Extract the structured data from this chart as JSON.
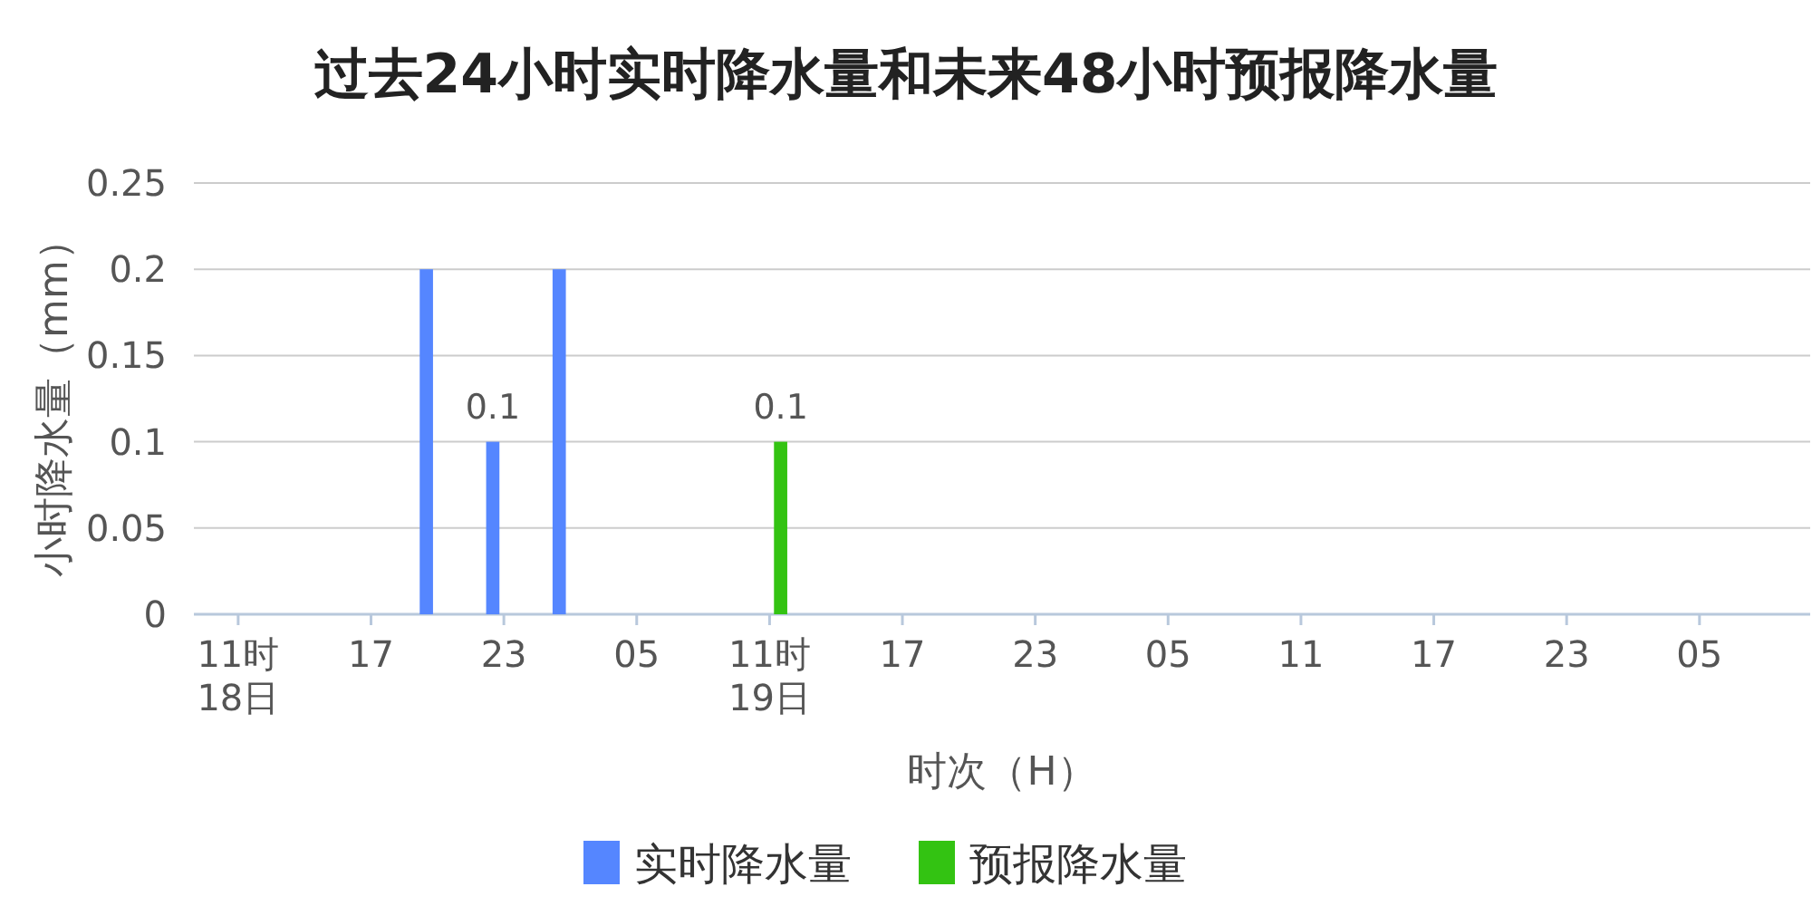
{
  "chart_data": {
    "type": "bar",
    "title": "过去24小时实时降水量和未来48小时预报降水量",
    "xlabel": "时次（H）",
    "ylabel": "小时降水量（mm）",
    "categories": [
      null,
      null,
      "11时\n18日",
      null,
      null,
      null,
      null,
      null,
      "17",
      null,
      null,
      null,
      null,
      null,
      "23",
      null,
      null,
      null,
      null,
      null,
      "05",
      null,
      null,
      null,
      null,
      null,
      "11时\n19日",
      null,
      null,
      null,
      null,
      null,
      "17",
      null,
      null,
      null,
      null,
      null,
      "23",
      null,
      null,
      null,
      null,
      null,
      "05",
      null,
      null,
      null,
      null,
      null,
      "11",
      null,
      null,
      null,
      null,
      null,
      "17",
      null,
      null,
      null,
      null,
      null,
      "23",
      null,
      null,
      null,
      null,
      null,
      "05",
      null,
      null,
      null,
      null
    ],
    "series": [
      {
        "name": "实时降水量",
        "color": "#5586ff",
        "values": [
          0,
          0,
          0,
          0,
          0,
          0,
          0,
          0,
          0,
          0,
          0.2,
          0,
          0,
          0.1,
          0,
          0,
          0.2,
          0,
          0,
          0,
          0,
          0,
          0,
          0,
          null,
          null,
          null,
          null,
          null,
          null,
          null,
          null,
          null,
          null,
          null,
          null,
          null,
          null,
          null,
          null,
          null,
          null,
          null,
          null,
          null,
          null,
          null,
          null,
          null,
          null,
          null,
          null,
          null,
          null,
          null,
          null,
          null,
          null,
          null,
          null,
          null,
          null,
          null,
          null,
          null,
          null,
          null,
          null,
          null,
          null,
          null,
          null,
          null
        ],
        "value_labels": [
          null,
          null,
          null,
          null,
          null,
          null,
          null,
          null,
          null,
          null,
          null,
          null,
          null,
          "0.1",
          null,
          null,
          null,
          null,
          null,
          null,
          null,
          null,
          null,
          null,
          null,
          null,
          null,
          null,
          null,
          null,
          null,
          null,
          null,
          null,
          null,
          null,
          null,
          null,
          null,
          null,
          null,
          null,
          null,
          null,
          null,
          null,
          null,
          null,
          null,
          null,
          null,
          null,
          null,
          null,
          null,
          null,
          null,
          null,
          null,
          null,
          null,
          null,
          null,
          null,
          null,
          null,
          null,
          null,
          null,
          null,
          null,
          null,
          null
        ]
      },
      {
        "name": "预报降水量",
        "color": "#33c312",
        "values": [
          null,
          null,
          null,
          null,
          null,
          null,
          null,
          null,
          null,
          null,
          null,
          null,
          null,
          null,
          null,
          null,
          null,
          null,
          null,
          null,
          null,
          null,
          null,
          null,
          0,
          0,
          0.1,
          0,
          0,
          0,
          0,
          0,
          0,
          0,
          0,
          0,
          0,
          0,
          0,
          0,
          0,
          0,
          0,
          0,
          0,
          0,
          0,
          0,
          0,
          0,
          0,
          0,
          0,
          0,
          0,
          0,
          0,
          0,
          0,
          0,
          0,
          0,
          0,
          0,
          0,
          0,
          0,
          0,
          0,
          0,
          0,
          0,
          0
        ],
        "value_labels": [
          null,
          null,
          null,
          null,
          null,
          null,
          null,
          null,
          null,
          null,
          null,
          null,
          null,
          null,
          null,
          null,
          null,
          null,
          null,
          null,
          null,
          null,
          null,
          null,
          null,
          null,
          "0.1",
          null,
          null,
          null,
          null,
          null,
          null,
          null,
          null,
          null,
          null,
          null,
          null,
          null,
          null,
          null,
          null,
          null,
          null,
          null,
          null,
          null,
          null,
          null,
          null,
          null,
          null,
          null,
          null,
          null,
          null,
          null,
          null,
          null,
          null,
          null,
          null,
          null,
          null,
          null,
          null,
          null,
          null,
          null,
          null,
          null,
          null
        ]
      }
    ],
    "ylim": [
      0,
      0.25
    ],
    "yticks": [
      0,
      0.05,
      0.1,
      0.15,
      0.2,
      0.25
    ],
    "grid": "y",
    "legend": "bottom"
  }
}
